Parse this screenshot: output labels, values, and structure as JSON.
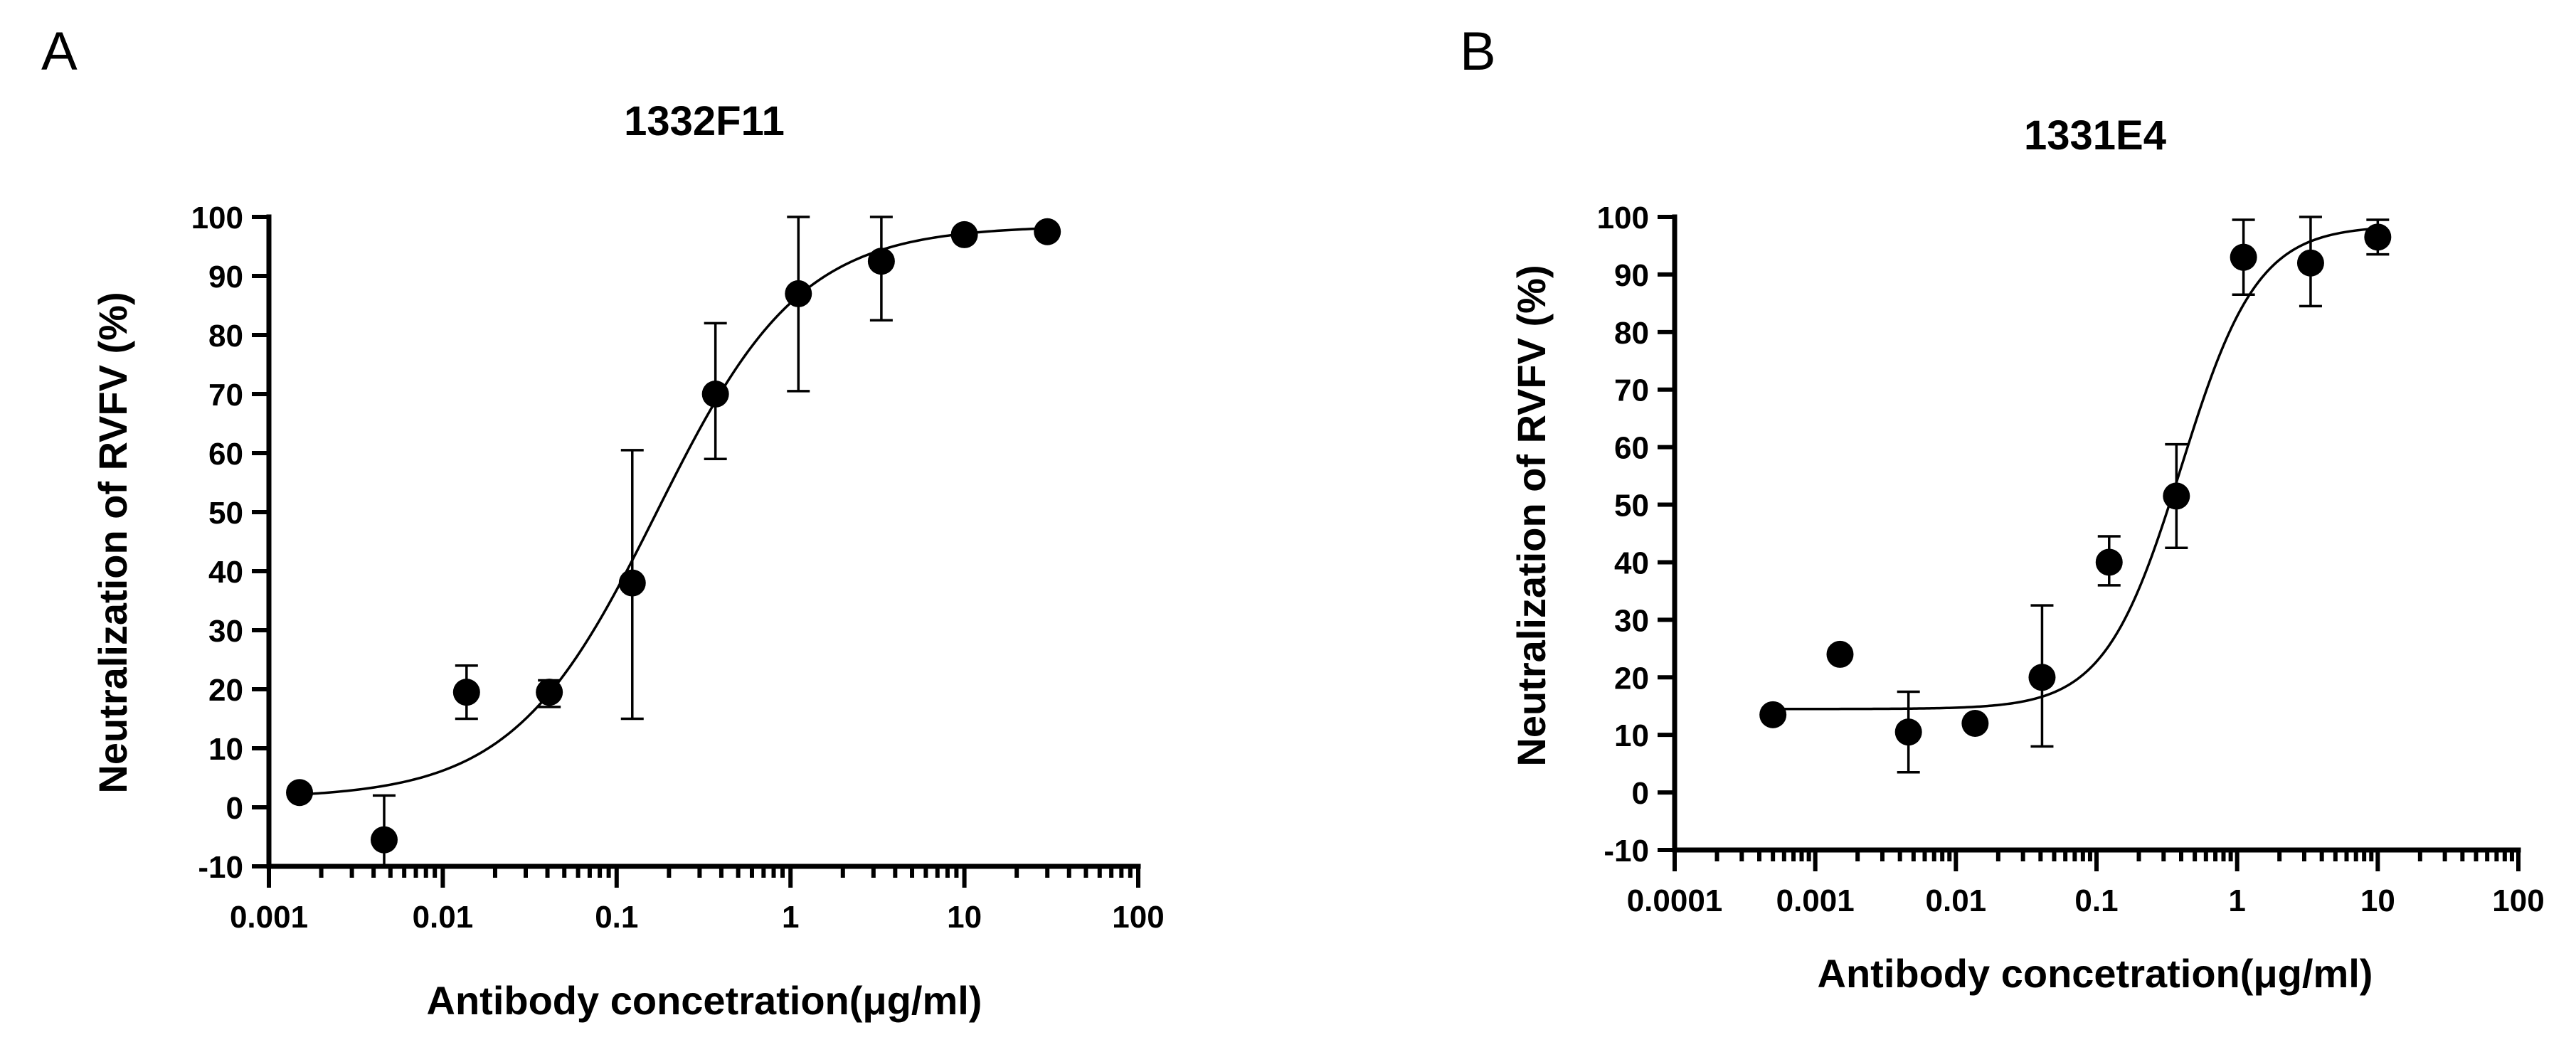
{
  "chart_data": [
    {
      "panel": "A",
      "type": "scatter",
      "title": "1332F11",
      "xlabel": "Antibody concetration(μg/ml)",
      "ylabel": "Neutralization of RVFV (%)",
      "xscale": "log",
      "xlim": [
        0.001,
        100
      ],
      "ylim": [
        -10,
        100
      ],
      "xticks": [
        0.001,
        0.01,
        0.1,
        1,
        10,
        100
      ],
      "xtick_labels": [
        "0.001",
        "0.01",
        "0.1",
        "1",
        "10",
        "100"
      ],
      "yticks": [
        -10,
        0,
        10,
        20,
        30,
        40,
        50,
        60,
        70,
        80,
        90,
        100
      ],
      "ytick_labels": [
        "-10",
        "0",
        "10",
        "20",
        "30",
        "40",
        "50",
        "60",
        "70",
        "80",
        "90",
        "100"
      ],
      "points": [
        {
          "x": 0.0015,
          "y": 2.5,
          "err_low": null,
          "err_high": null
        },
        {
          "x": 0.0046,
          "y": -5.5,
          "err_low": -10,
          "err_high": 2
        },
        {
          "x": 0.0137,
          "y": 19.5,
          "err_low": 15,
          "err_high": 24
        },
        {
          "x": 0.041,
          "y": 19.5,
          "err_low": 17,
          "err_high": 21.5
        },
        {
          "x": 0.123,
          "y": 38,
          "err_low": 15,
          "err_high": 60.5
        },
        {
          "x": 0.37,
          "y": 70,
          "err_low": 59,
          "err_high": 82
        },
        {
          "x": 1.11,
          "y": 87,
          "err_low": 70.5,
          "err_high": 100
        },
        {
          "x": 3.33,
          "y": 92.5,
          "err_low": 82.5,
          "err_high": 100
        },
        {
          "x": 10,
          "y": 97,
          "err_low": null,
          "err_high": null
        },
        {
          "x": 30,
          "y": 97.5,
          "err_low": null,
          "err_high": null
        }
      ],
      "fit": {
        "model": "4PL",
        "bottom": 1.5,
        "top": 98.5,
        "ec50": 0.17,
        "hill": 1.05
      }
    },
    {
      "panel": "B",
      "type": "scatter",
      "title": "1331E4",
      "xlabel": "Antibody concetration(μg/ml)",
      "ylabel": "Neutralization of RVFV (%)",
      "xscale": "log",
      "xlim": [
        0.0001,
        100
      ],
      "ylim": [
        -10,
        100
      ],
      "xticks": [
        0.0001,
        0.001,
        0.01,
        0.1,
        1,
        10,
        100
      ],
      "xtick_labels": [
        "0.0001",
        "0.001",
        "0.01",
        "0.1",
        "1",
        "10",
        "100"
      ],
      "yticks": [
        -10,
        0,
        10,
        20,
        30,
        40,
        50,
        60,
        70,
        80,
        90,
        100
      ],
      "ytick_labels": [
        "-10",
        "0",
        "10",
        "20",
        "30",
        "40",
        "50",
        "60",
        "70",
        "80",
        "90",
        "100"
      ],
      "points": [
        {
          "x": 0.0005,
          "y": 13.5,
          "err_low": null,
          "err_high": null
        },
        {
          "x": 0.0015,
          "y": 24,
          "err_low": null,
          "err_high": null
        },
        {
          "x": 0.0046,
          "y": 10.5,
          "err_low": 3.5,
          "err_high": 17.5
        },
        {
          "x": 0.0137,
          "y": 12,
          "err_low": null,
          "err_high": null
        },
        {
          "x": 0.041,
          "y": 20,
          "err_low": 8,
          "err_high": 32.5
        },
        {
          "x": 0.123,
          "y": 40,
          "err_low": 36,
          "err_high": 44.5
        },
        {
          "x": 0.37,
          "y": 51.5,
          "err_low": 42.5,
          "err_high": 60.5
        },
        {
          "x": 1.11,
          "y": 93,
          "err_low": 86.5,
          "err_high": 99.5
        },
        {
          "x": 3.33,
          "y": 92,
          "err_low": 84.5,
          "err_high": 100
        },
        {
          "x": 10,
          "y": 96.5,
          "err_low": 93.5,
          "err_high": 99.5
        }
      ],
      "fit": {
        "model": "4PL",
        "bottom": 14.5,
        "top": 98.5,
        "ec50": 0.4,
        "hill": 1.6
      }
    }
  ]
}
